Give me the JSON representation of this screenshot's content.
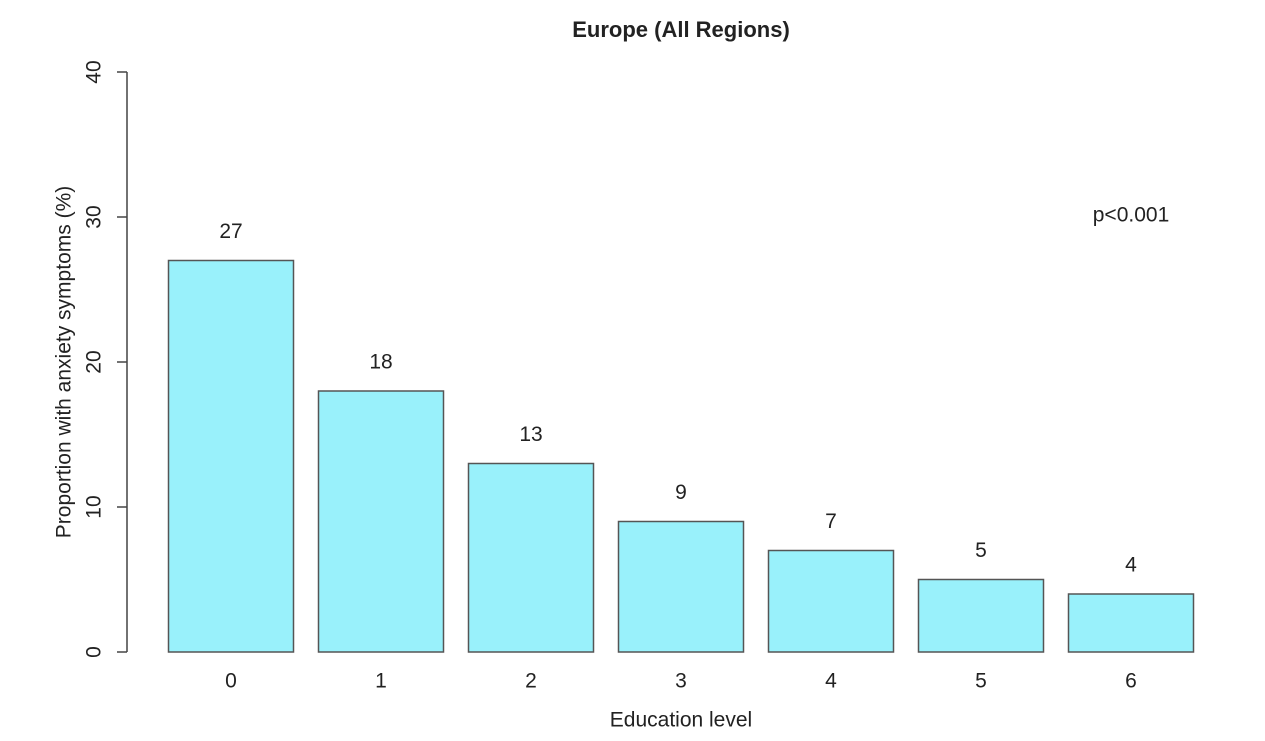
{
  "chart_data": {
    "type": "bar",
    "title": "Europe (All Regions)",
    "xlabel": "Education level",
    "ylabel": "Proportion with anxiety symptoms (%)",
    "categories": [
      "0",
      "1",
      "2",
      "3",
      "4",
      "5",
      "6"
    ],
    "values": [
      27,
      18,
      13,
      9,
      7,
      5,
      4
    ],
    "color": "#99f1fb",
    "ylim": [
      0,
      40
    ],
    "yticks": [
      0,
      10,
      20,
      30,
      40
    ],
    "annotation": "p<0.001"
  }
}
